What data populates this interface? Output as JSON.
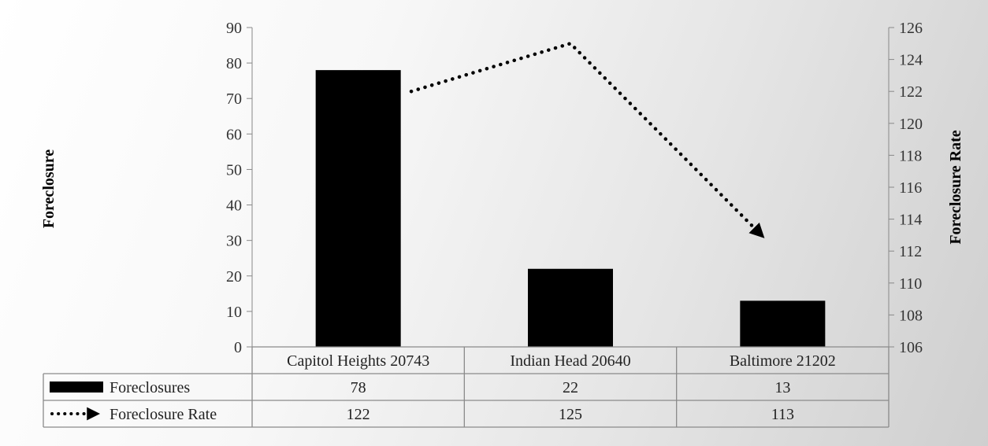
{
  "chart_data": {
    "type": "bar",
    "categories": [
      "Capitol Heights 20743",
      "Indian Head 20640",
      "Baltimore 21202"
    ],
    "series": [
      {
        "name": "Foreclosures",
        "kind": "bar",
        "axis": "left",
        "values": [
          78,
          22,
          13
        ],
        "color": "#000000"
      },
      {
        "name": "Foreclosure Rate",
        "kind": "line",
        "style": "dotted-arrow",
        "axis": "right",
        "values": [
          122,
          125,
          113
        ],
        "color": "#000000"
      }
    ],
    "title": "",
    "ylabel": "Foreclosure",
    "y2label": "Foreclosure Rate",
    "ylim": [
      0,
      90
    ],
    "yticks": [
      0,
      10,
      20,
      30,
      40,
      50,
      60,
      70,
      80,
      90
    ],
    "y2lim": [
      106,
      126
    ],
    "y2ticks": [
      106,
      108,
      110,
      112,
      114,
      116,
      118,
      120,
      122,
      124,
      126
    ],
    "data_table": true,
    "grid": false
  }
}
